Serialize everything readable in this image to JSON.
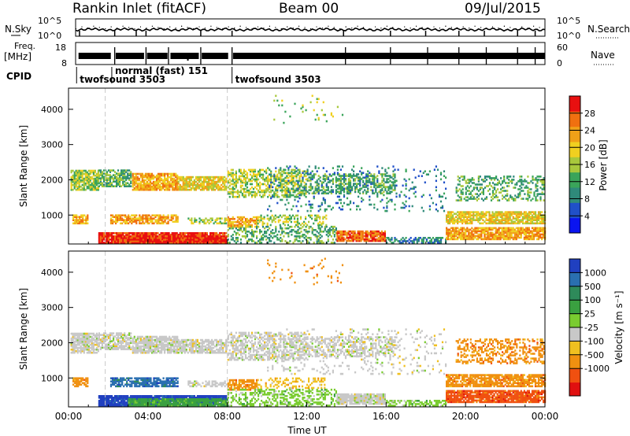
{
  "header": {
    "station": "Rankin Inlet (fitACF)",
    "beam": "Beam 00",
    "date": "09/Jul/2015"
  },
  "chart_data": [
    {
      "type": "line",
      "name": "noise-panel",
      "left_label": "N.Sky",
      "right_label": "N.Search",
      "left_ticks": [
        "10^5",
        "10^0"
      ],
      "right_ticks": [
        "10^5",
        "10^0"
      ],
      "right_styles": [
        "solid",
        "dotted"
      ]
    },
    {
      "type": "line",
      "name": "freq-panel",
      "left_label": "Freq.",
      "left_unit": "[MHz]",
      "right_label": "Nave",
      "left_ticks": [
        18,
        8
      ],
      "right_ticks": [
        60,
        0
      ]
    },
    {
      "type": "table",
      "name": "cpid-panel",
      "label": "CPID",
      "segments": [
        {
          "label": "twofsound 3503",
          "start_hour": 0.05,
          "end_hour": 1.85
        },
        {
          "label": "normal (fast) 151",
          "start_hour": 1.85,
          "end_hour": 8.0
        },
        {
          "label": "twofsound 3503",
          "start_hour": 8.0,
          "end_hour": 24.0
        }
      ]
    },
    {
      "type": "heatmap",
      "name": "power-panel",
      "ylabel": "Slant Range [km]",
      "yticks": [
        1000,
        2000,
        3000,
        4000
      ],
      "ylim": [
        180,
        4600
      ],
      "colorbar_label": "Power [dB]",
      "colorbar_ticks": [
        4,
        8,
        12,
        16,
        20,
        24,
        28
      ],
      "colorbar_range": [
        0,
        32
      ],
      "colorbar_colors": [
        "#0a14f0",
        "#2050c8",
        "#2f8a7a",
        "#3aa45a",
        "#a8c83c",
        "#f0d020",
        "#f0a018",
        "#f07010",
        "#e81010"
      ]
    },
    {
      "type": "heatmap",
      "name": "velocity-panel",
      "ylabel": "Slant Range [km]",
      "yticks": [
        1000,
        2000,
        3000,
        4000
      ],
      "ylim": [
        180,
        4600
      ],
      "colorbar_label": "Velocity [m s⁻¹]",
      "colorbar_ticks": [
        "1000",
        "500",
        "100",
        "25",
        "-25",
        "-100",
        "-500",
        "-1000"
      ],
      "colorbar_colors": [
        "#2040c0",
        "#2a6fb0",
        "#2e8a5a",
        "#3aa040",
        "#7acc30",
        "#c8c8c8",
        "#f0c020",
        "#f09010",
        "#f05010",
        "#e01010"
      ],
      "xlabel": "Time UT",
      "xticks": [
        "00:00",
        "04:00",
        "08:00",
        "12:00",
        "16:00",
        "20:00",
        "00:00"
      ],
      "xlim_hours": [
        0,
        24
      ]
    }
  ]
}
